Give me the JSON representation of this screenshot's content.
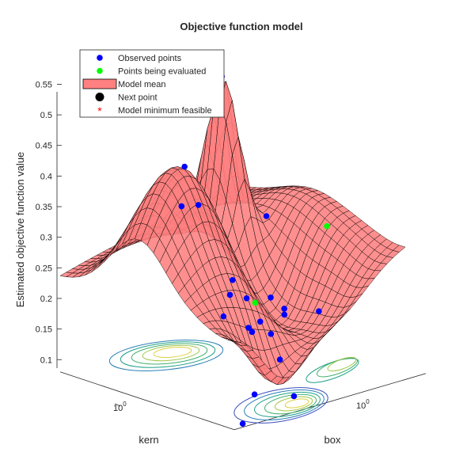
{
  "chart_data": {
    "type": "surface",
    "title": "Objective function model",
    "xlabel": "kern",
    "ylabel": "box",
    "zlabel": "Estimated objective function value",
    "x_scale": "log",
    "y_scale": "log",
    "zlim": [
      0.09,
      0.56
    ],
    "z_ticks": [
      0.1,
      0.15,
      0.2,
      0.25,
      0.3,
      0.35,
      0.4,
      0.45,
      0.5,
      0.55
    ],
    "x_tick_labels": [
      "10^0"
    ],
    "y_tick_labels": [
      "10^0"
    ],
    "grid": false,
    "legend_position": "top-left",
    "legend": [
      {
        "label": "Observed points",
        "marker": "dot",
        "color": "#0000ff"
      },
      {
        "label": "Points being evaluated",
        "marker": "dot",
        "color": "#00ff00"
      },
      {
        "label": "Model mean",
        "marker": "patch",
        "color": "#ff8080"
      },
      {
        "label": "Next point",
        "marker": "bigdot",
        "color": "#000000"
      },
      {
        "label": "Model minimum feasible",
        "marker": "star",
        "color": "#ff0000"
      }
    ],
    "surface_color": "#ff8080",
    "observed_points": [
      {
        "u": 0.15,
        "v": 0.55,
        "z": 0.38
      },
      {
        "u": 0.3,
        "v": 0.42,
        "z": 0.41
      },
      {
        "u": 0.32,
        "v": 0.48,
        "z": 0.35
      },
      {
        "u": 0.12,
        "v": 0.82,
        "z": 0.23
      },
      {
        "u": 0.28,
        "v": 0.7,
        "z": 0.23
      },
      {
        "u": 0.66,
        "v": 0.28,
        "z": 0.49
      },
      {
        "u": 0.85,
        "v": 0.35,
        "z": 0.24
      },
      {
        "u": 0.2,
        "v": 0.92,
        "z": 0.1
      },
      {
        "u": 0.1,
        "v": 0.95,
        "z": 0.07
      },
      {
        "u": 0.47,
        "v": 0.62,
        "z": 0.14
      },
      {
        "u": 0.5,
        "v": 0.58,
        "z": 0.18
      },
      {
        "u": 0.52,
        "v": 0.7,
        "z": 0.13
      },
      {
        "u": 0.45,
        "v": 0.66,
        "z": 0.14
      },
      {
        "u": 0.6,
        "v": 0.62,
        "z": 0.17
      },
      {
        "u": 0.72,
        "v": 0.58,
        "z": 0.13
      },
      {
        "u": 0.78,
        "v": 0.72,
        "z": 0.13
      },
      {
        "u": 0.68,
        "v": 0.62,
        "z": 0.13
      },
      {
        "u": 0.55,
        "v": 0.45,
        "z": 0.19
      },
      {
        "u": 0.62,
        "v": 0.54,
        "z": 0.12
      },
      {
        "u": 0.45,
        "v": 0.82,
        "z": 0.11
      },
      {
        "u": 0.4,
        "v": 0.95,
        "z": 0.07
      }
    ],
    "evaluated_points": [
      {
        "u": 1.0,
        "v": 0.55,
        "z": 0.22
      },
      {
        "u": 0.53,
        "v": 0.6,
        "z": 0.17
      }
    ]
  }
}
